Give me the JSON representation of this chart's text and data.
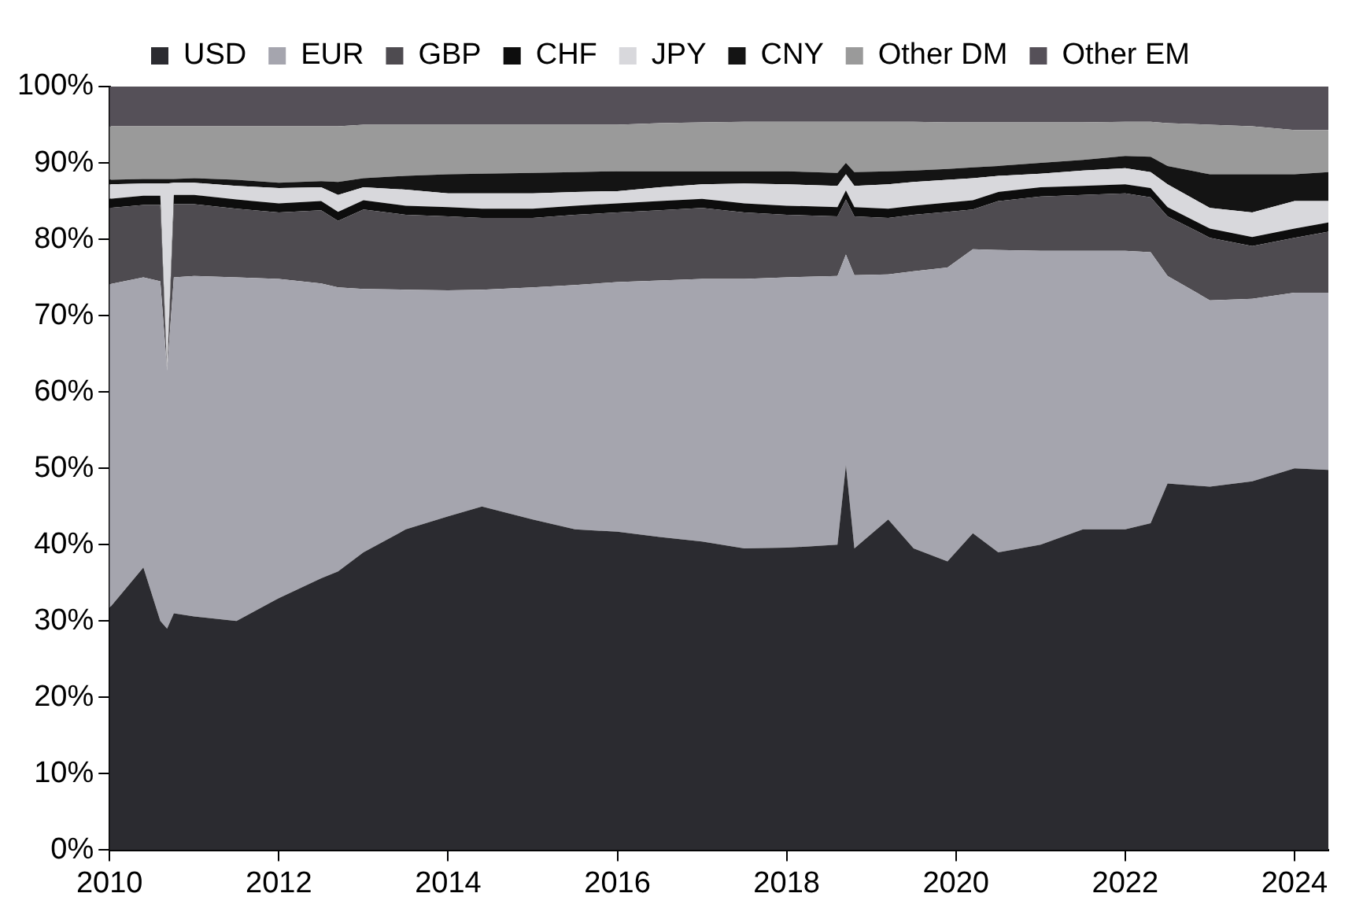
{
  "chart_data": {
    "type": "area",
    "stacked": true,
    "legend": "top",
    "grid": false,
    "x": [
      2010.0,
      2010.4,
      2010.6,
      2010.68,
      2010.76,
      2011,
      2011.5,
      2012,
      2012.5,
      2012.7,
      2013,
      2013.5,
      2014,
      2014.4,
      2015,
      2015.5,
      2016,
      2016.5,
      2017,
      2017.5,
      2018,
      2018.6,
      2018.7,
      2018.8,
      2019.2,
      2019.5,
      2019.9,
      2020.2,
      2020.5,
      2021,
      2021.5,
      2022,
      2022.3,
      2022.5,
      2023,
      2023.5,
      2024,
      2024.4
    ],
    "xlim": [
      2010,
      2024.4
    ],
    "xticks": [
      2010,
      2012,
      2014,
      2016,
      2018,
      2020,
      2022,
      2024
    ],
    "ylim": [
      0,
      100
    ],
    "yticks": [
      {
        "value": 0,
        "label": "0%"
      },
      {
        "value": 10,
        "label": "10%"
      },
      {
        "value": 20,
        "label": "20%"
      },
      {
        "value": 30,
        "label": "30%"
      },
      {
        "value": 40,
        "label": "40%"
      },
      {
        "value": 50,
        "label": "50%"
      },
      {
        "value": 60,
        "label": "60%"
      },
      {
        "value": 70,
        "label": "70%"
      },
      {
        "value": 80,
        "label": "80%"
      },
      {
        "value": 90,
        "label": "90%"
      },
      {
        "value": 100,
        "label": "100%"
      }
    ],
    "series": [
      {
        "name": "USD",
        "color": "#2b2b30",
        "values": [
          31.7,
          37,
          30,
          29,
          31,
          30.6,
          30,
          33,
          35.6,
          36.5,
          39,
          42,
          43.7,
          45,
          43.3,
          42,
          41.7,
          41,
          40.4,
          39.5,
          39.6,
          40,
          50.4,
          39.5,
          43.3,
          39.5,
          37.8,
          41.5,
          39,
          40,
          42,
          42,
          42.8,
          48,
          47.6,
          48.3,
          50,
          49.8
        ]
      },
      {
        "name": "EUR",
        "color": "#a5a5ae",
        "values": [
          42.4,
          38,
          44.5,
          33.8,
          44,
          44.6,
          45,
          41.8,
          38.6,
          37.2,
          34.5,
          31.4,
          29.6,
          28.4,
          30.4,
          32,
          32.7,
          33.6,
          34.4,
          35.3,
          35.4,
          35.2,
          27.6,
          35.8,
          32.1,
          36.3,
          38.5,
          37.2,
          39.6,
          38.5,
          36.5,
          36.5,
          35.5,
          27.2,
          24.4,
          23.9,
          23,
          23.2
        ]
      },
      {
        "name": "GBP",
        "color": "#4e4b50",
        "values": [
          10,
          9.5,
          10,
          0,
          9.6,
          9.4,
          9,
          8.7,
          9.6,
          8.7,
          10.4,
          9.8,
          9.7,
          9.4,
          9.1,
          9.2,
          9.1,
          9.2,
          9.3,
          8.7,
          8.2,
          7.8,
          7.2,
          7.7,
          7.4,
          7.4,
          7.3,
          5.2,
          6.4,
          7.1,
          7.3,
          7.5,
          7.2,
          7.8,
          8.2,
          6.9,
          7.2,
          8
        ]
      },
      {
        "name": "CHF",
        "color": "#0d0d0d",
        "values": [
          1.2,
          1.2,
          1.2,
          0,
          1.2,
          1.2,
          1.2,
          1.2,
          1.2,
          1.2,
          1.2,
          1.2,
          1.2,
          1.2,
          1.2,
          1.2,
          1.2,
          1.2,
          1.2,
          1.2,
          1.2,
          1.2,
          1.2,
          1.2,
          1.2,
          1.2,
          1.2,
          1.2,
          1.2,
          1.2,
          1.2,
          1.2,
          1.2,
          1.2,
          1.2,
          1.2,
          1.2,
          1.2
        ]
      },
      {
        "name": "JPY",
        "color": "#d8d8dc",
        "values": [
          1.9,
          1.6,
          1.6,
          24.5,
          1.6,
          1.6,
          1.8,
          2,
          1.8,
          2.2,
          1.7,
          2.1,
          1.8,
          2,
          2,
          1.8,
          1.6,
          1.8,
          1.9,
          2.6,
          2.8,
          2.8,
          2.1,
          2.8,
          3.2,
          3.1,
          3,
          2.9,
          2.1,
          1.8,
          2,
          2.1,
          2.1,
          3,
          2.7,
          3.2,
          3.6,
          2.8
        ]
      },
      {
        "name": "CNY",
        "color": "#141414",
        "values": [
          0.6,
          0.6,
          0.6,
          0.6,
          0.5,
          0.6,
          0.8,
          0.7,
          0.8,
          1.7,
          1.2,
          1.8,
          2.5,
          2.6,
          2.7,
          2.6,
          2.6,
          2.1,
          1.7,
          1.6,
          1.7,
          1.7,
          1.5,
          1.8,
          1.7,
          1.5,
          1.4,
          1.4,
          1.3,
          1.4,
          1.4,
          1.6,
          2,
          2.4,
          4.4,
          5,
          3.5,
          3.8
        ]
      },
      {
        "name": "Other DM",
        "color": "#9a9a9a",
        "values": [
          7,
          6.9,
          6.9,
          6.9,
          6.9,
          6.8,
          7,
          7.4,
          7.2,
          7.3,
          7,
          6.7,
          6.5,
          6.4,
          6.3,
          6.2,
          6.1,
          6.3,
          6.4,
          6.5,
          6.5,
          6.7,
          5.4,
          6.6,
          6.5,
          6.4,
          6.1,
          5.9,
          5.7,
          5.3,
          4.9,
          4.5,
          4.6,
          5.6,
          6.5,
          6.3,
          5.8,
          5.5
        ]
      },
      {
        "name": "Other EM",
        "color": "#555058",
        "values": [
          5.2,
          5.2,
          5.2,
          5.2,
          5.2,
          5.2,
          5.2,
          5.2,
          5.2,
          5.2,
          5,
          5,
          5,
          5,
          5,
          5,
          5,
          4.8,
          4.7,
          4.6,
          4.6,
          4.6,
          4.6,
          4.6,
          4.6,
          4.6,
          4.7,
          4.7,
          4.7,
          4.7,
          4.7,
          4.6,
          4.6,
          4.8,
          5,
          5.2,
          5.7,
          5.7
        ]
      }
    ]
  }
}
